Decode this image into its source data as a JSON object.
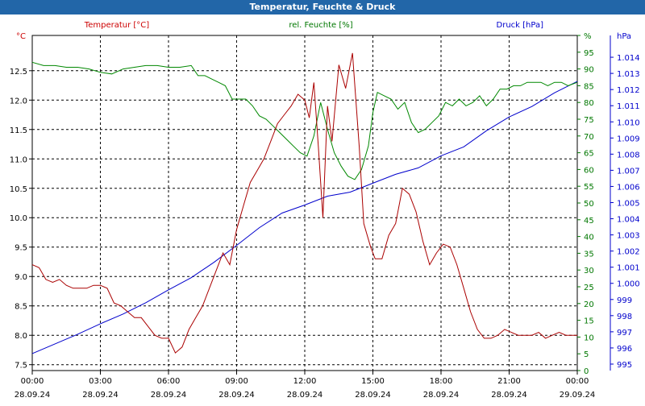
{
  "window": {
    "title": "Temperatur, Feuchte & Druck"
  },
  "chart_data": {
    "type": "line",
    "grid": true,
    "x_unit": "hours",
    "x_ticks": [
      {
        "hour": 0,
        "time": "00:00",
        "date": "28.09.24"
      },
      {
        "hour": 3,
        "time": "03:00",
        "date": "28.09.24"
      },
      {
        "hour": 6,
        "time": "06:00",
        "date": "28.09.24"
      },
      {
        "hour": 9,
        "time": "09:00",
        "date": "28.09.24"
      },
      {
        "hour": 12,
        "time": "12:00",
        "date": "28.09.24"
      },
      {
        "hour": 15,
        "time": "15:00",
        "date": "28.09.24"
      },
      {
        "hour": 18,
        "time": "18:00",
        "date": "28.09.24"
      },
      {
        "hour": 21,
        "time": "21:00",
        "date": "28.09.24"
      },
      {
        "hour": 24,
        "time": "00:00",
        "date": "29.09.24"
      }
    ],
    "xlim": [
      0,
      24
    ],
    "axes": {
      "temperature": {
        "unit": "°C",
        "ylim": [
          7.4,
          13.1
        ],
        "ticks": [
          "7.5",
          "8.0",
          "8.5",
          "9.0",
          "9.5",
          "10.0",
          "10.5",
          "11.0",
          "11.5",
          "12.0",
          "12.5"
        ],
        "color": "#cc0000"
      },
      "humidity": {
        "unit": "%",
        "ylim": [
          0,
          100
        ],
        "ticks": [
          "0",
          "5",
          "10",
          "15",
          "20",
          "25",
          "30",
          "35",
          "40",
          "45",
          "50",
          "55",
          "60",
          "65",
          "70",
          "75",
          "80",
          "85",
          "90",
          "95",
          "%"
        ],
        "color": "#007700"
      },
      "pressure": {
        "unit": "hPa",
        "ylim": [
          994.6,
          1015.35
        ],
        "ticks": [
          "995",
          "996",
          "997",
          "998",
          "999",
          "1.000",
          "1.001",
          "1.002",
          "1.003",
          "1.004",
          "1.005",
          "1.006",
          "1.007",
          "1.008",
          "1.009",
          "1.010",
          "1.011",
          "1.012",
          "1.013",
          "1.014"
        ],
        "color": "#0000cc"
      }
    },
    "series": [
      {
        "name": "Temperatur [°C]",
        "axis": "temperature",
        "color": "#aa0000",
        "x": [
          0,
          0.3,
          0.6,
          0.9,
          1.2,
          1.5,
          1.8,
          2.1,
          2.4,
          2.7,
          3.0,
          3.3,
          3.6,
          3.9,
          4.2,
          4.5,
          4.8,
          5.1,
          5.4,
          5.7,
          6.0,
          6.3,
          6.6,
          6.9,
          7.2,
          7.5,
          7.8,
          8.1,
          8.4,
          8.7,
          9.0,
          9.3,
          9.6,
          9.9,
          10.2,
          10.5,
          10.8,
          11.1,
          11.4,
          11.7,
          12.0,
          12.2,
          12.4,
          12.6,
          12.8,
          13.0,
          13.2,
          13.5,
          13.8,
          14.1,
          14.4,
          14.6,
          14.9,
          15.1,
          15.4,
          15.7,
          16.0,
          16.3,
          16.6,
          16.9,
          17.2,
          17.5,
          17.8,
          18.1,
          18.4,
          18.7,
          19.0,
          19.3,
          19.6,
          19.9,
          20.2,
          20.5,
          20.8,
          21.1,
          21.4,
          21.7,
          22.0,
          22.3,
          22.6,
          22.9,
          23.2,
          23.5,
          23.8,
          24.0
        ],
        "values": [
          9.2,
          9.15,
          8.95,
          8.9,
          8.95,
          8.85,
          8.8,
          8.8,
          8.8,
          8.85,
          8.85,
          8.8,
          8.55,
          8.5,
          8.4,
          8.3,
          8.3,
          8.15,
          8.0,
          7.95,
          7.95,
          7.7,
          7.8,
          8.1,
          8.3,
          8.5,
          8.8,
          9.1,
          9.4,
          9.2,
          9.8,
          10.2,
          10.6,
          10.8,
          11.0,
          11.3,
          11.6,
          11.75,
          11.9,
          12.1,
          12.0,
          11.7,
          12.3,
          11.2,
          10.0,
          11.9,
          11.3,
          12.6,
          12.2,
          12.8,
          11.2,
          9.9,
          9.5,
          9.3,
          9.3,
          9.7,
          9.9,
          10.5,
          10.4,
          10.1,
          9.6,
          9.2,
          9.4,
          9.55,
          9.5,
          9.2,
          8.8,
          8.4,
          8.1,
          7.95,
          7.95,
          8.0,
          8.1,
          8.05,
          8.0,
          8.0,
          8.0,
          8.05,
          7.95,
          8.0,
          8.05,
          8.0,
          8.0,
          8.0
        ]
      },
      {
        "name": "rel. Feuchte [%]",
        "axis": "humidity",
        "color": "#008800",
        "x": [
          0,
          0.5,
          1.0,
          1.5,
          2.0,
          2.5,
          3.0,
          3.5,
          4.0,
          4.5,
          5.0,
          5.5,
          6.0,
          6.5,
          7.0,
          7.3,
          7.6,
          7.9,
          8.2,
          8.5,
          8.8,
          9.1,
          9.4,
          9.7,
          10.0,
          10.3,
          10.6,
          10.9,
          11.2,
          11.5,
          11.8,
          12.1,
          12.4,
          12.7,
          13.0,
          13.3,
          13.6,
          13.9,
          14.2,
          14.5,
          14.8,
          15.0,
          15.2,
          15.5,
          15.8,
          16.1,
          16.4,
          16.7,
          17.0,
          17.3,
          17.6,
          17.9,
          18.2,
          18.5,
          18.8,
          19.1,
          19.4,
          19.7,
          20.0,
          20.3,
          20.6,
          20.9,
          21.2,
          21.5,
          21.8,
          22.1,
          22.4,
          22.7,
          23.0,
          23.3,
          23.6,
          24.0
        ],
        "values": [
          92,
          91,
          91,
          90.5,
          90.5,
          90,
          89,
          88.5,
          90,
          90.5,
          91,
          91,
          90.5,
          90.5,
          91,
          88,
          88,
          87,
          86,
          85,
          81,
          81,
          81,
          79,
          76,
          75,
          73,
          71,
          69,
          67,
          65,
          64,
          70,
          80,
          72,
          65,
          61,
          58,
          57,
          60,
          67,
          77,
          83,
          82,
          81,
          78,
          80,
          74,
          71,
          72,
          74,
          76,
          80,
          79,
          81,
          79,
          80,
          82,
          79,
          81,
          84,
          84,
          85,
          85,
          86,
          86,
          86,
          85,
          86,
          86,
          85,
          86
        ]
      },
      {
        "name": "Druck [hPa]",
        "axis": "pressure",
        "color": "#0000cc",
        "x": [
          0,
          1,
          2,
          3,
          4,
          5,
          6,
          7,
          8,
          9,
          10,
          11,
          12,
          13,
          14,
          15,
          16,
          17,
          18,
          19,
          20,
          21,
          22,
          23,
          24
        ],
        "values": [
          995.65,
          996.25,
          996.85,
          997.5,
          998.1,
          998.8,
          999.6,
          1000.35,
          1001.3,
          1002.35,
          1003.45,
          1004.35,
          1004.85,
          1005.4,
          1005.65,
          1006.2,
          1006.75,
          1007.15,
          1007.9,
          1008.45,
          1009.45,
          1010.3,
          1010.95,
          1011.8,
          1012.5
        ]
      }
    ]
  }
}
